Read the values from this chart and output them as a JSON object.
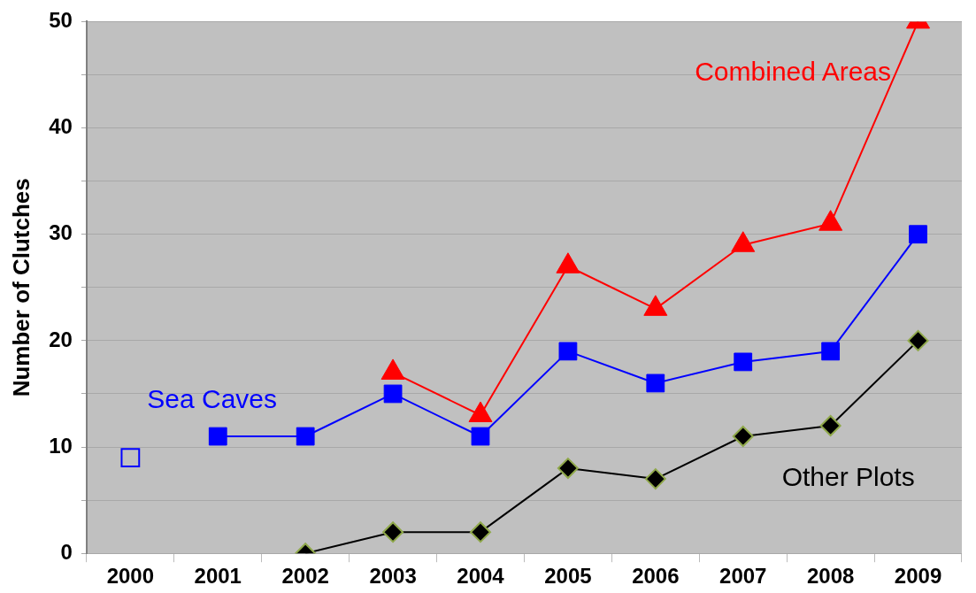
{
  "chart_data": {
    "type": "line",
    "ylabel": "Number of Clutches",
    "categories": [
      "2000",
      "2001",
      "2002",
      "2003",
      "2004",
      "2005",
      "2006",
      "2007",
      "2008",
      "2009"
    ],
    "series": [
      {
        "name": "Combined Areas",
        "color": "#ff0000",
        "marker": "triangle",
        "values": [
          null,
          null,
          null,
          17,
          13,
          27,
          23,
          29,
          31,
          50
        ]
      },
      {
        "name": "Sea Caves",
        "color": "#0000ff",
        "marker": "square",
        "values": [
          null,
          11,
          11,
          15,
          11,
          19,
          16,
          18,
          19,
          30
        ]
      },
      {
        "type": "scatter",
        "color": "#0000ff",
        "marker": "square",
        "values": [
          9,
          null,
          null,
          null,
          null,
          null,
          null,
          null,
          null,
          null
        ]
      },
      {
        "name": "Other Plots",
        "color": "#000000",
        "marker": "diamond",
        "values": [
          null,
          null,
          0,
          2,
          2,
          8,
          7,
          11,
          12,
          20
        ]
      }
    ],
    "ylim": [
      0,
      50
    ],
    "yticks": [
      0,
      {
        "value": 5,
        "label": null
      },
      10,
      {
        "value": 15,
        "label": null
      },
      20,
      {
        "value": 25,
        "label": null
      },
      30,
      {
        "value": 35,
        "label": null
      },
      40,
      {
        "value": 45,
        "label": null
      },
      50
    ],
    "grid": "y",
    "legend": false
  }
}
